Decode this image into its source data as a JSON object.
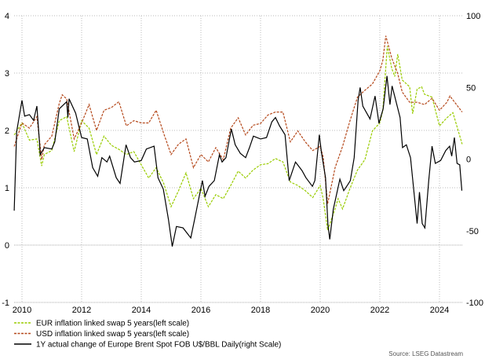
{
  "chart_data": {
    "type": "line",
    "title": "",
    "source": "Source: LSEG Datastream",
    "x_range": [
      2009.74,
      2024.76
    ],
    "x_ticks": [
      "2010",
      "2012",
      "2014",
      "2016",
      "2018",
      "2020",
      "2022",
      "2024"
    ],
    "y_left": {
      "range": [
        -1,
        4
      ],
      "ticks": [
        "-1",
        "0",
        "1",
        "2",
        "3",
        "4"
      ]
    },
    "y_right": {
      "range": [
        -100,
        100
      ],
      "ticks": [
        "-100",
        "-50",
        "0",
        "50",
        "100"
      ]
    },
    "grid": true,
    "legend_placement": "bottom-left",
    "series": [
      {
        "name": "EUR inflation linked swap 5 years(left scale)",
        "axis": "left",
        "color": "#99cc00",
        "style": "dashed",
        "points": [
          [
            2009.74,
            1.92
          ],
          [
            2010.0,
            2.13
          ],
          [
            2010.25,
            1.83
          ],
          [
            2010.5,
            1.85
          ],
          [
            2010.66,
            1.38
          ],
          [
            2010.75,
            1.58
          ],
          [
            2011.0,
            1.65
          ],
          [
            2011.25,
            2.17
          ],
          [
            2011.5,
            2.24
          ],
          [
            2011.75,
            1.63
          ],
          [
            2012.0,
            2.17
          ],
          [
            2012.25,
            2.04
          ],
          [
            2012.5,
            1.58
          ],
          [
            2012.75,
            1.9
          ],
          [
            2013.0,
            1.74
          ],
          [
            2013.25,
            1.67
          ],
          [
            2013.5,
            1.58
          ],
          [
            2013.75,
            1.63
          ],
          [
            2014.0,
            1.4
          ],
          [
            2014.25,
            1.17
          ],
          [
            2014.5,
            1.35
          ],
          [
            2014.75,
            1.08
          ],
          [
            2015.0,
            0.67
          ],
          [
            2015.25,
            0.95
          ],
          [
            2015.5,
            1.26
          ],
          [
            2015.75,
            0.81
          ],
          [
            2016.0,
            0.99
          ],
          [
            2016.25,
            0.67
          ],
          [
            2016.5,
            0.88
          ],
          [
            2016.75,
            0.81
          ],
          [
            2017.0,
            1.04
          ],
          [
            2017.25,
            1.29
          ],
          [
            2017.5,
            1.17
          ],
          [
            2017.75,
            1.31
          ],
          [
            2018.0,
            1.4
          ],
          [
            2018.25,
            1.42
          ],
          [
            2018.5,
            1.51
          ],
          [
            2018.75,
            1.45
          ],
          [
            2019.0,
            1.1
          ],
          [
            2019.25,
            1.04
          ],
          [
            2019.5,
            0.95
          ],
          [
            2019.75,
            0.83
          ],
          [
            2020.0,
            1.04
          ],
          [
            2020.1,
            0.81
          ],
          [
            2020.25,
            0.26
          ],
          [
            2020.5,
            0.63
          ],
          [
            2020.6,
            0.81
          ],
          [
            2020.75,
            0.63
          ],
          [
            2021.0,
            0.99
          ],
          [
            2021.25,
            1.31
          ],
          [
            2021.5,
            1.49
          ],
          [
            2021.75,
            1.99
          ],
          [
            2022.0,
            2.13
          ],
          [
            2022.1,
            2.35
          ],
          [
            2022.25,
            3.47
          ],
          [
            2022.4,
            3.08
          ],
          [
            2022.5,
            2.94
          ],
          [
            2022.6,
            3.33
          ],
          [
            2022.75,
            2.88
          ],
          [
            2023.0,
            2.76
          ],
          [
            2023.1,
            2.29
          ],
          [
            2023.25,
            2.72
          ],
          [
            2023.4,
            2.76
          ],
          [
            2023.5,
            2.63
          ],
          [
            2023.75,
            2.58
          ],
          [
            2024.0,
            2.08
          ],
          [
            2024.25,
            2.22
          ],
          [
            2024.45,
            2.31
          ],
          [
            2024.76,
            1.76
          ]
        ]
      },
      {
        "name": "USD inflation linked swap 5 years(left scale)",
        "axis": "left",
        "color": "#b5491c",
        "style": "dashed",
        "points": [
          [
            2009.74,
            1.72
          ],
          [
            2010.0,
            2.13
          ],
          [
            2010.25,
            2.04
          ],
          [
            2010.5,
            2.24
          ],
          [
            2010.66,
            1.49
          ],
          [
            2010.75,
            1.75
          ],
          [
            2011.0,
            1.9
          ],
          [
            2011.25,
            2.47
          ],
          [
            2011.35,
            2.62
          ],
          [
            2011.5,
            2.55
          ],
          [
            2011.75,
            1.85
          ],
          [
            2012.0,
            2.13
          ],
          [
            2012.25,
            2.45
          ],
          [
            2012.5,
            2.0
          ],
          [
            2012.75,
            2.35
          ],
          [
            2013.0,
            2.4
          ],
          [
            2013.25,
            2.5
          ],
          [
            2013.5,
            2.08
          ],
          [
            2013.75,
            2.17
          ],
          [
            2014.0,
            2.13
          ],
          [
            2014.25,
            2.13
          ],
          [
            2014.5,
            2.35
          ],
          [
            2014.75,
            1.95
          ],
          [
            2015.0,
            1.58
          ],
          [
            2015.25,
            1.76
          ],
          [
            2015.5,
            1.85
          ],
          [
            2015.75,
            1.35
          ],
          [
            2016.0,
            1.58
          ],
          [
            2016.25,
            1.45
          ],
          [
            2016.5,
            1.7
          ],
          [
            2016.75,
            1.49
          ],
          [
            2017.0,
            2.04
          ],
          [
            2017.25,
            2.22
          ],
          [
            2017.5,
            1.92
          ],
          [
            2017.75,
            2.09
          ],
          [
            2018.0,
            2.12
          ],
          [
            2018.25,
            2.27
          ],
          [
            2018.5,
            2.32
          ],
          [
            2018.75,
            2.32
          ],
          [
            2019.0,
            1.8
          ],
          [
            2019.25,
            1.99
          ],
          [
            2019.5,
            1.8
          ],
          [
            2019.75,
            1.65
          ],
          [
            2020.0,
            1.72
          ],
          [
            2020.1,
            1.54
          ],
          [
            2020.25,
            0.72
          ],
          [
            2020.5,
            1.35
          ],
          [
            2020.75,
            1.72
          ],
          [
            2021.0,
            2.17
          ],
          [
            2021.25,
            2.58
          ],
          [
            2021.5,
            2.7
          ],
          [
            2021.75,
            2.81
          ],
          [
            2022.0,
            3.04
          ],
          [
            2022.1,
            3.22
          ],
          [
            2022.2,
            3.65
          ],
          [
            2022.4,
            3.26
          ],
          [
            2022.6,
            2.99
          ],
          [
            2022.75,
            2.67
          ],
          [
            2023.0,
            2.49
          ],
          [
            2023.25,
            2.49
          ],
          [
            2023.5,
            2.45
          ],
          [
            2023.75,
            2.56
          ],
          [
            2024.0,
            2.35
          ],
          [
            2024.25,
            2.49
          ],
          [
            2024.35,
            2.6
          ],
          [
            2024.76,
            2.32
          ]
        ]
      },
      {
        "name": "1Y actual change of Europe Brent Spot FOB U$/BBL Daily(right Scale)",
        "axis": "right",
        "color": "#000000",
        "style": "solid",
        "points": [
          [
            2009.74,
            -36
          ],
          [
            2009.82,
            19
          ],
          [
            2010.0,
            41
          ],
          [
            2010.09,
            30
          ],
          [
            2010.25,
            31
          ],
          [
            2010.39,
            27
          ],
          [
            2010.5,
            37
          ],
          [
            2010.59,
            11
          ],
          [
            2010.61,
            3
          ],
          [
            2010.75,
            8
          ],
          [
            2011.0,
            7
          ],
          [
            2011.1,
            12
          ],
          [
            2011.25,
            35
          ],
          [
            2011.5,
            40
          ],
          [
            2011.54,
            29
          ],
          [
            2011.58,
            42
          ],
          [
            2011.8,
            32
          ],
          [
            2012.0,
            15
          ],
          [
            2012.19,
            14
          ],
          [
            2012.37,
            -6
          ],
          [
            2012.54,
            -12
          ],
          [
            2012.68,
            1
          ],
          [
            2012.85,
            -2
          ],
          [
            2012.94,
            2
          ],
          [
            2013.16,
            -13
          ],
          [
            2013.29,
            -17
          ],
          [
            2013.49,
            10
          ],
          [
            2013.64,
            1
          ],
          [
            2013.77,
            -2
          ],
          [
            2014.0,
            -1
          ],
          [
            2014.17,
            7
          ],
          [
            2014.43,
            9
          ],
          [
            2014.56,
            -13
          ],
          [
            2014.74,
            -21
          ],
          [
            2014.91,
            -42
          ],
          [
            2015.04,
            -61
          ],
          [
            2015.18,
            -47
          ],
          [
            2015.4,
            -48
          ],
          [
            2015.66,
            -55
          ],
          [
            2015.79,
            -42
          ],
          [
            2016.05,
            -15
          ],
          [
            2016.14,
            -26
          ],
          [
            2016.27,
            -19
          ],
          [
            2016.45,
            -15
          ],
          [
            2016.62,
            3
          ],
          [
            2016.71,
            -2
          ],
          [
            2016.84,
            1
          ],
          [
            2017.02,
            21
          ],
          [
            2017.15,
            10
          ],
          [
            2017.32,
            4
          ],
          [
            2017.5,
            1
          ],
          [
            2017.63,
            8
          ],
          [
            2017.76,
            16
          ],
          [
            2018.0,
            14
          ],
          [
            2018.2,
            15
          ],
          [
            2018.38,
            26
          ],
          [
            2018.5,
            29
          ],
          [
            2018.64,
            23
          ],
          [
            2018.82,
            17
          ],
          [
            2018.96,
            -15
          ],
          [
            2019.17,
            -2
          ],
          [
            2019.39,
            -8
          ],
          [
            2019.52,
            -13
          ],
          [
            2019.74,
            -19
          ],
          [
            2019.82,
            -15
          ],
          [
            2019.97,
            17
          ],
          [
            2020.04,
            5
          ],
          [
            2020.18,
            -13
          ],
          [
            2020.26,
            -46
          ],
          [
            2020.32,
            -56
          ],
          [
            2020.44,
            -35
          ],
          [
            2020.66,
            -14
          ],
          [
            2020.79,
            -22
          ],
          [
            2020.92,
            -18
          ],
          [
            2021.01,
            -15
          ],
          [
            2021.14,
            1
          ],
          [
            2021.27,
            41
          ],
          [
            2021.34,
            50
          ],
          [
            2021.43,
            37
          ],
          [
            2021.67,
            28
          ],
          [
            2021.84,
            44
          ],
          [
            2021.97,
            25
          ],
          [
            2022.11,
            35
          ],
          [
            2022.24,
            58
          ],
          [
            2022.34,
            38
          ],
          [
            2022.41,
            51
          ],
          [
            2022.68,
            29
          ],
          [
            2022.76,
            8
          ],
          [
            2022.89,
            10
          ],
          [
            2023.03,
            1
          ],
          [
            2023.25,
            -45
          ],
          [
            2023.33,
            -23
          ],
          [
            2023.42,
            -45
          ],
          [
            2023.51,
            -48
          ],
          [
            2023.64,
            -15
          ],
          [
            2023.75,
            9
          ],
          [
            2023.86,
            -3
          ],
          [
            2024.04,
            -1
          ],
          [
            2024.21,
            6
          ],
          [
            2024.34,
            9
          ],
          [
            2024.41,
            2
          ],
          [
            2024.5,
            15
          ],
          [
            2024.59,
            -3
          ],
          [
            2024.68,
            -4
          ],
          [
            2024.75,
            -22
          ]
        ]
      }
    ]
  }
}
